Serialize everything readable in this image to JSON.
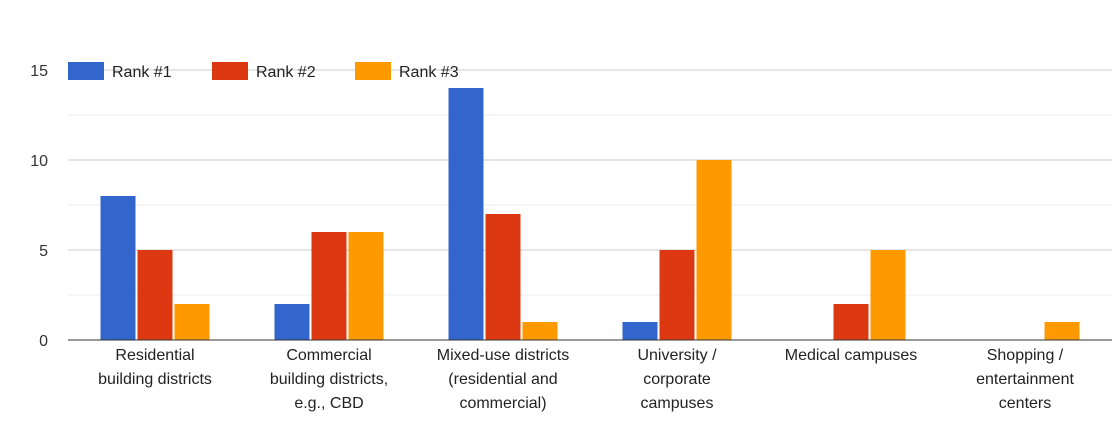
{
  "chart_data": {
    "type": "bar",
    "categories": [
      [
        "Residential",
        "building districts"
      ],
      [
        "Commercial",
        "building districts,",
        "e.g., CBD"
      ],
      [
        "Mixed-use districts",
        "(residential and",
        "commercial)"
      ],
      [
        "University /",
        "corporate",
        "campuses"
      ],
      [
        "Medical campuses"
      ],
      [
        "Shopping /",
        "entertainment",
        "centers"
      ]
    ],
    "series": [
      {
        "name": "Rank #1",
        "color": "#3366cc",
        "values": [
          8,
          2,
          14,
          1,
          0,
          0
        ]
      },
      {
        "name": "Rank #2",
        "color": "#dc3912",
        "values": [
          5,
          6,
          7,
          5,
          2,
          0
        ]
      },
      {
        "name": "Rank #3",
        "color": "#ff9900",
        "values": [
          2,
          6,
          1,
          10,
          5,
          1
        ]
      }
    ],
    "ylim": [
      0,
      15
    ],
    "yticks": [
      "0",
      "5",
      "10",
      "15"
    ],
    "minor_gridlines": true,
    "legend_position": "top-left"
  }
}
